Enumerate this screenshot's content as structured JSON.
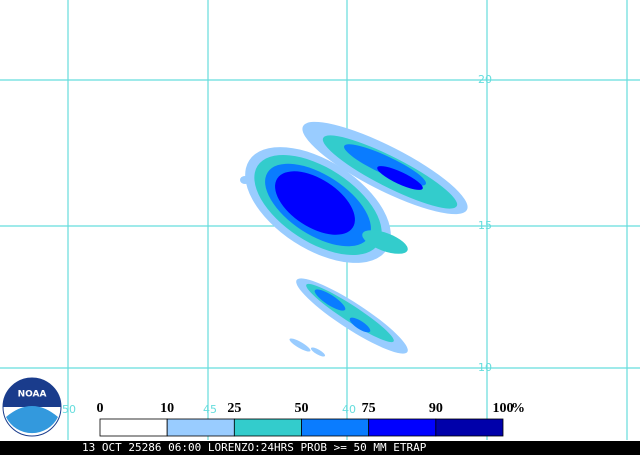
{
  "map": {
    "lat_labels": [
      "20",
      "15",
      "10"
    ],
    "lon_labels": [
      "50",
      "45",
      "40"
    ]
  },
  "legend": {
    "ticks": [
      0,
      10,
      25,
      50,
      75,
      90,
      100
    ],
    "unit": "%",
    "colors": [
      "#ffffff",
      "#99ccff",
      "#33cccc",
      "#0a7cff",
      "#0000ff",
      "#0000aa"
    ]
  },
  "logo": "NOAA",
  "caption": "13 OCT 25286 06:00 LORENZO:24HRS PROB >= 50 MM ETRAP"
}
